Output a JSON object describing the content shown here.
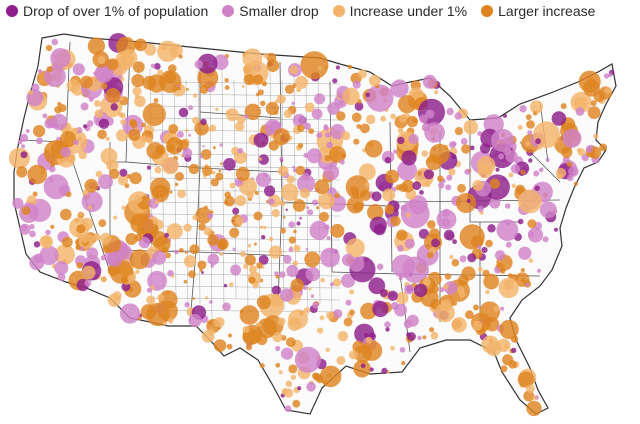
{
  "legend": {
    "items": [
      {
        "label": "Drop of over 1% of population",
        "color": "#8e1e8b"
      },
      {
        "label": "Smaller drop",
        "color": "#d082c8"
      },
      {
        "label": "Increase under 1%",
        "color": "#f3b36a"
      },
      {
        "label": "Larger increase",
        "color": "#de8420"
      }
    ]
  }
}
